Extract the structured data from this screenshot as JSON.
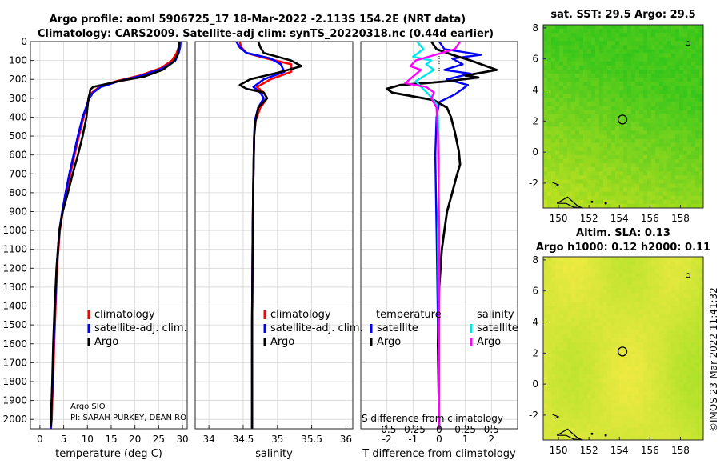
{
  "title": {
    "line1": "Argo profile: aoml 5906725_17 18-Mar-2022 -2.113S 154.2E (NRT data)",
    "line2": "Climatology: CARS2009. Satellite-adj clim: synTS_20220318.nc (0.44d earlier)"
  },
  "credit": {
    "org": "Argo SIO",
    "pi": "PI: SARAH PURKEY, DEAN RO"
  },
  "stamp": "©IMOS 23-Mar-2022 11:41:32",
  "colors": {
    "climatology": "#ff0000",
    "satellite": "#0000ff",
    "argo": "#000000",
    "sat_sal": "#00e5ee",
    "argo_sal": "#ff00ff"
  },
  "chart_data": [
    {
      "id": "temperature",
      "type": "line",
      "xlabel": "temperature (deg C)",
      "ylabel": "",
      "xlim": [
        -2,
        31
      ],
      "ylim": [
        0,
        2050
      ],
      "xticks": [
        0,
        5,
        10,
        15,
        20,
        25,
        30
      ],
      "xtick_labels": [
        "0",
        "5",
        "10",
        "15",
        "20",
        "25",
        "30"
      ],
      "yticks": [
        0,
        100,
        200,
        300,
        400,
        500,
        600,
        700,
        800,
        900,
        1000,
        1100,
        1200,
        1300,
        1400,
        1500,
        1600,
        1700,
        1800,
        1900,
        2000
      ],
      "ytick_labels": [
        "0",
        "100",
        "200",
        "300",
        "400",
        "500",
        "600",
        "700",
        "800",
        "900",
        "1000",
        "1100",
        "1200",
        "1300",
        "1400",
        "1500",
        "1600",
        "1700",
        "1800",
        "1900",
        "2000"
      ],
      "legend": [
        "climatology",
        "satellite-adj. clim.",
        "Argo"
      ],
      "series": [
        {
          "name": "climatology",
          "x": [
            29.5,
            29.2,
            28.8,
            27.8,
            25.5,
            21,
            16,
            12.5,
            11,
            10.3,
            9.2,
            8.2,
            7.3,
            6.4,
            5.6,
            4.8,
            4.2,
            3.6,
            3.3,
            3.0,
            2.8,
            2.6,
            2.5,
            2.3
          ],
          "y": [
            0,
            30,
            60,
            100,
            140,
            180,
            210,
            240,
            270,
            300,
            400,
            500,
            600,
            700,
            800,
            900,
            1000,
            1200,
            1400,
            1600,
            1800,
            1900,
            2000,
            2050
          ]
        },
        {
          "name": "satellite-adj. clim.",
          "x": [
            29.6,
            29.5,
            29.2,
            28.5,
            26,
            21.5,
            16.5,
            12.8,
            11.2,
            10.4,
            9.0,
            8.0,
            7.1,
            6.2,
            5.4,
            4.7,
            4.1,
            3.5,
            3.2,
            2.9,
            2.7,
            2.5,
            2.4,
            2.3
          ],
          "y": [
            0,
            30,
            60,
            100,
            140,
            180,
            210,
            240,
            270,
            300,
            400,
            500,
            600,
            700,
            800,
            900,
            1000,
            1200,
            1400,
            1600,
            1800,
            1900,
            2000,
            2050
          ]
        },
        {
          "name": "Argo",
          "x": [
            29.3,
            29.2,
            29.0,
            28.0,
            25.8,
            22,
            16.5,
            11.2,
            10.6,
            10.5,
            10.2,
            9.8,
            9.0,
            8.0,
            6.9,
            5.9,
            4.8,
            4.1,
            3.5,
            3.1,
            2.8,
            2.6,
            2.4,
            2.3
          ],
          "y": [
            0,
            30,
            70,
            110,
            150,
            185,
            210,
            240,
            255,
            275,
            300,
            400,
            500,
            600,
            700,
            800,
            900,
            1000,
            1200,
            1400,
            1600,
            1800,
            1950,
            2040
          ]
        }
      ]
    },
    {
      "id": "salinity",
      "type": "line",
      "xlabel": "salinity",
      "xlim": [
        33.8,
        36.1
      ],
      "ylim": [
        0,
        2050
      ],
      "xticks": [
        34,
        34.5,
        35,
        35.5,
        36
      ],
      "xtick_labels": [
        "34",
        "34.5",
        "35",
        "35.5",
        "36"
      ],
      "legend": [
        "climatology",
        "satellite-adj. clim.",
        "Argo"
      ],
      "series": [
        {
          "name": "climatology",
          "x": [
            34.45,
            34.47,
            34.55,
            34.85,
            35.2,
            35.2,
            34.9,
            34.7,
            34.8,
            34.85,
            34.75,
            34.68,
            34.66,
            34.65,
            34.64,
            34.63,
            34.63
          ],
          "y": [
            0,
            30,
            60,
            90,
            120,
            160,
            200,
            240,
            270,
            300,
            350,
            420,
            500,
            700,
            1000,
            1500,
            2050
          ]
        },
        {
          "name": "satellite-adj. clim.",
          "x": [
            34.4,
            34.45,
            34.55,
            34.9,
            35.05,
            35.1,
            34.8,
            34.65,
            34.75,
            34.8,
            34.72,
            34.67,
            34.66,
            34.65,
            34.64,
            34.63,
            34.63
          ],
          "y": [
            0,
            30,
            60,
            90,
            120,
            160,
            200,
            240,
            270,
            300,
            350,
            420,
            500,
            700,
            1000,
            1500,
            2050
          ]
        },
        {
          "name": "Argo",
          "x": [
            34.72,
            34.75,
            34.8,
            35.2,
            35.35,
            35.0,
            34.6,
            34.45,
            34.55,
            34.8,
            34.85,
            34.72,
            34.68,
            34.66,
            34.65,
            34.64,
            34.63,
            34.63
          ],
          "y": [
            0,
            30,
            60,
            100,
            130,
            165,
            200,
            230,
            250,
            270,
            300,
            350,
            420,
            500,
            700,
            1000,
            1500,
            2050
          ]
        }
      ]
    },
    {
      "id": "difference",
      "type": "line",
      "xlabel": "T difference from climatology",
      "xlabel_top": "S difference from climatology",
      "xlim": [
        -3,
        3
      ],
      "ylim": [
        0,
        2050
      ],
      "xticks": [
        -2,
        -1,
        0,
        1,
        2
      ],
      "xtick_labels": [
        "-2",
        "-1",
        "0",
        "1",
        "2"
      ],
      "sal_ticks": [
        -0.5,
        -0.25,
        0,
        0.25,
        0.5
      ],
      "sal_tick_labels": [
        "-0.5",
        "-0.25",
        "0",
        "0.25",
        "0.5"
      ],
      "legend_temperature": {
        "title": "temperature",
        "items": [
          "satellite",
          "Argo"
        ]
      },
      "legend_salinity": {
        "title": "salinity",
        "items": [
          "satellite",
          "Argo"
        ]
      },
      "series": [
        {
          "name": "temperature satellite",
          "x": [
            0.0,
            0.2,
            1.6,
            0.5,
            0.9,
            0.2,
            1.2,
            0.3,
            1.1,
            0.6,
            0.0,
            -0.1,
            -0.15,
            -0.1,
            -0.05,
            0.0
          ],
          "y": [
            0,
            40,
            70,
            90,
            120,
            150,
            170,
            200,
            230,
            280,
            320,
            400,
            600,
            1000,
            1500,
            2050
          ]
        },
        {
          "name": "temperature Argo",
          "x": [
            -0.3,
            -0.1,
            0.5,
            1.2,
            2.2,
            1.0,
            1.5,
            0.3,
            -0.5,
            -1.5,
            -2.0,
            -1.8,
            -1.0,
            -0.2,
            0.3,
            0.45,
            0.6,
            0.75,
            0.8,
            0.65,
            0.5,
            0.3,
            0.2,
            0.1,
            0.0,
            -0.05,
            0.0
          ],
          "y": [
            0,
            40,
            70,
            100,
            150,
            180,
            190,
            210,
            220,
            230,
            250,
            270,
            290,
            310,
            350,
            400,
            480,
            580,
            650,
            720,
            800,
            900,
            1000,
            1100,
            1300,
            1600,
            2050
          ]
        },
        {
          "name": "salinity satellite",
          "x": [
            -0.85,
            -0.6,
            -1.0,
            -0.3,
            -0.5,
            -0.2,
            -0.9,
            -0.4,
            -0.1,
            -0.05,
            0.0,
            -0.05,
            0.0
          ],
          "y": [
            0,
            40,
            80,
            100,
            120,
            150,
            210,
            280,
            330,
            400,
            600,
            1000,
            2050
          ]
        },
        {
          "name": "salinity Argo",
          "x": [
            0.8,
            0.6,
            -0.4,
            -0.9,
            -1.1,
            -0.7,
            -1.3,
            -0.5,
            -0.2,
            -0.3,
            -0.1,
            -0.05,
            0.0,
            0.0
          ],
          "y": [
            0,
            40,
            80,
            100,
            130,
            150,
            220,
            240,
            270,
            300,
            350,
            500,
            1000,
            2050
          ]
        }
      ]
    },
    {
      "id": "sst_map",
      "type": "heatmap",
      "title": "sat. SST: 29.5 Argo: 29.5",
      "xlim": [
        149,
        159.5
      ],
      "ylim": [
        -3.6,
        8.2
      ],
      "xticks": [
        150,
        152,
        154,
        156,
        158
      ],
      "xtick_labels": [
        "150",
        "152",
        "154",
        "156",
        "158"
      ],
      "yticks": [
        -2,
        0,
        2,
        4,
        6,
        8
      ],
      "ytick_labels": [
        "-2",
        "0",
        "2",
        "4",
        "6",
        "8"
      ],
      "marker": {
        "lon": 154.2,
        "lat": 2.1
      }
    },
    {
      "id": "sla_map",
      "type": "heatmap",
      "title_line1": "Altim. SLA: 0.13",
      "title_line2": "Argo h1000: 0.12 h2000: 0.11",
      "xlim": [
        149,
        159.5
      ],
      "ylim": [
        -3.6,
        8.2
      ],
      "xticks": [
        150,
        152,
        154,
        156,
        158
      ],
      "xtick_labels": [
        "150",
        "152",
        "154",
        "156",
        "158"
      ],
      "yticks": [
        -2,
        0,
        2,
        4,
        6,
        8
      ],
      "ytick_labels": [
        "-2",
        "0",
        "2",
        "4",
        "6",
        "8"
      ],
      "marker": {
        "lon": 154.2,
        "lat": 2.1
      }
    }
  ]
}
